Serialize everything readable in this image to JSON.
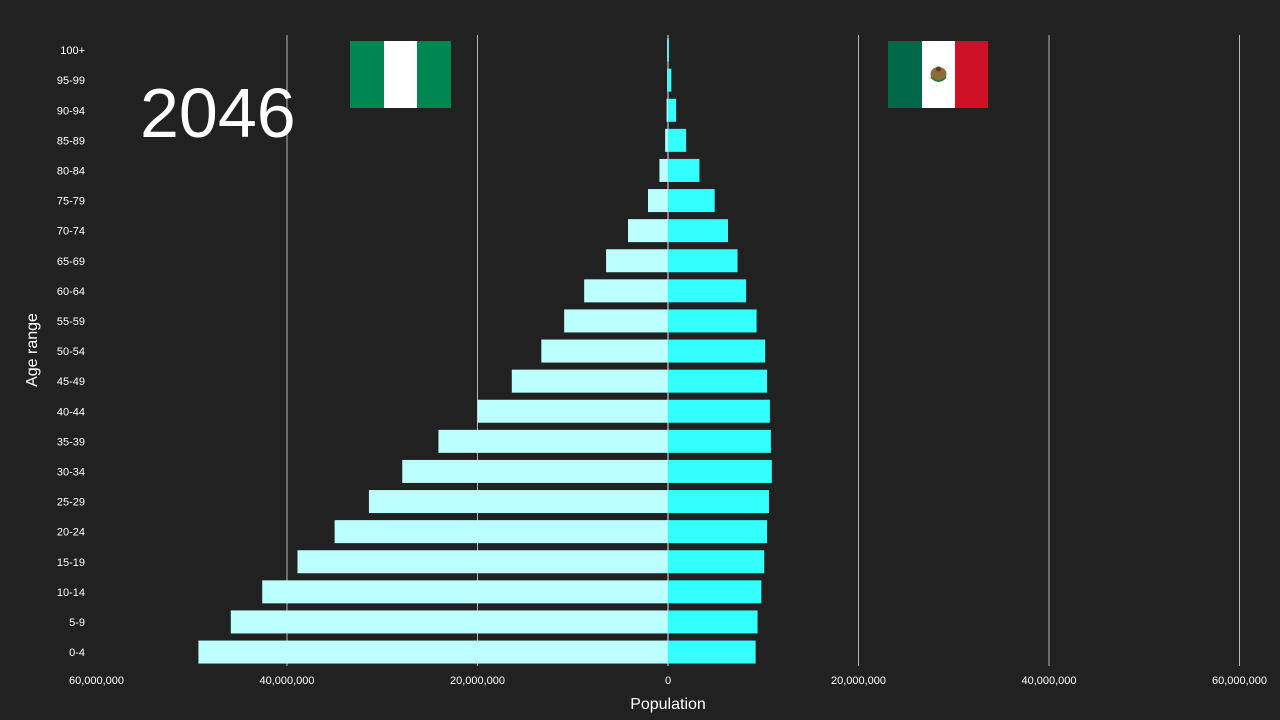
{
  "year": "2046",
  "colors": {
    "background": "#212121",
    "left_bar": "#bbffff",
    "right_bar": "#33ffff",
    "grid": "#ffffff"
  },
  "flags": {
    "left": {
      "country": "Nigeria",
      "icon": "nigeria-flag-icon",
      "colors": [
        "#008751",
        "#ffffff",
        "#008751"
      ]
    },
    "right": {
      "country": "Mexico",
      "icon": "mexico-flag-icon",
      "colors": [
        "#006847",
        "#ffffff",
        "#ce1126"
      ]
    }
  },
  "chart_data": {
    "type": "bar",
    "orientation": "horizontal-butterfly",
    "xlabel": "Population",
    "ylabel": "Age range",
    "xlim": [
      -60000000,
      60000000
    ],
    "x_ticks": [
      -60000000,
      -40000000,
      -20000000,
      0,
      20000000,
      40000000,
      60000000
    ],
    "x_tick_labels": [
      "60,000,000",
      "40,000,000",
      "20,000,000",
      "0",
      "20,000,000",
      "40,000,000",
      "60,000,000"
    ],
    "grid": true,
    "categories": [
      "100+",
      "95-99",
      "90-94",
      "85-89",
      "80-84",
      "75-79",
      "70-74",
      "65-69",
      "60-64",
      "55-59",
      "50-54",
      "45-49",
      "40-44",
      "35-39",
      "30-34",
      "25-29",
      "20-24",
      "15-19",
      "10-14",
      "5-9",
      "0-4"
    ],
    "series": [
      {
        "side": "left",
        "values": [
          5000,
          60000,
          150000,
          300000,
          900000,
          2100000,
          4200000,
          6500000,
          8800000,
          10900000,
          13300000,
          16400000,
          20000000,
          24100000,
          27900000,
          31400000,
          35000000,
          38900000,
          42600000,
          45900000,
          49300000
        ]
      },
      {
        "side": "right",
        "values": [
          100000,
          350000,
          850000,
          1900000,
          3300000,
          4900000,
          6300000,
          7300000,
          8200000,
          9300000,
          10200000,
          10400000,
          10700000,
          10800000,
          10900000,
          10600000,
          10400000,
          10100000,
          9800000,
          9400000,
          9200000
        ]
      }
    ]
  }
}
